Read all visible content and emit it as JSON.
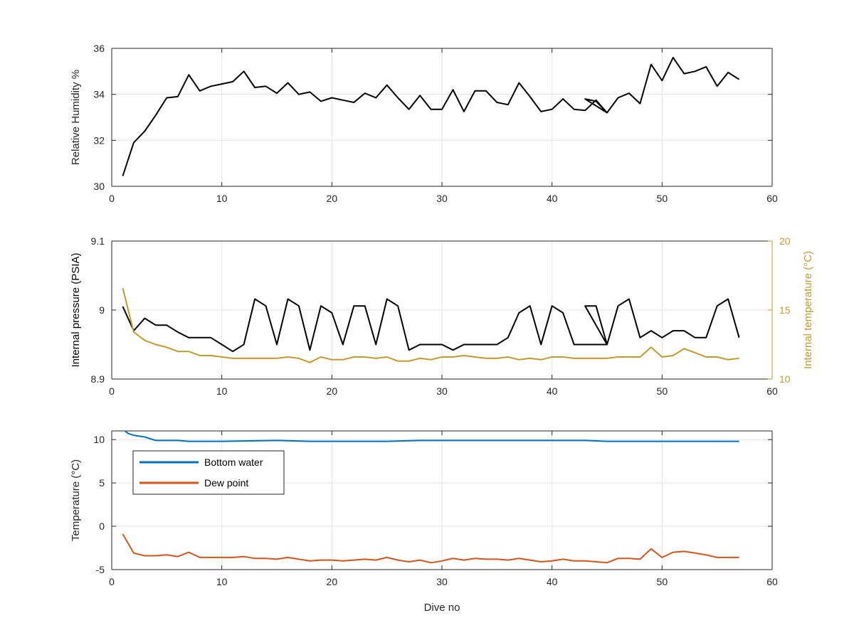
{
  "chart_data": [
    {
      "type": "line",
      "title": "",
      "xlabel": "",
      "ylabel": "Relative Humidity %",
      "xlim": [
        0,
        60
      ],
      "ylim": [
        30,
        36
      ],
      "xticks": [
        0,
        10,
        20,
        30,
        40,
        50,
        60
      ],
      "yticks": [
        30,
        32,
        34,
        36
      ],
      "grid": true,
      "legend": null,
      "series": [
        {
          "color": "#000000",
          "x": [
            1,
            2,
            3,
            4,
            5,
            6,
            7,
            8,
            9,
            10,
            11,
            12,
            13,
            14,
            15,
            16,
            17,
            18,
            19,
            20,
            21,
            22,
            23,
            24,
            25,
            26,
            27,
            28,
            29,
            30,
            31,
            32,
            33,
            34,
            35,
            36,
            37,
            38,
            39,
            40,
            41,
            42,
            43,
            44,
            45,
            43,
            44,
            45,
            46,
            47,
            48,
            49,
            50,
            51,
            52,
            53,
            54,
            55,
            56,
            57
          ],
          "y": [
            30.45,
            31.9,
            32.4,
            33.1,
            33.85,
            33.9,
            34.85,
            34.15,
            34.35,
            34.45,
            34.55,
            35.0,
            34.3,
            34.35,
            34.05,
            34.5,
            34.0,
            34.1,
            33.7,
            33.85,
            33.75,
            33.65,
            34.05,
            33.85,
            34.4,
            33.85,
            33.35,
            33.95,
            33.35,
            33.35,
            34.2,
            33.25,
            34.15,
            34.15,
            33.65,
            33.55,
            34.5,
            33.9,
            33.25,
            33.35,
            33.8,
            33.35,
            33.3,
            33.75,
            33.2,
            33.8,
            33.7,
            33.2,
            33.85,
            34.05,
            33.6,
            35.3,
            34.6,
            35.6,
            34.9,
            35.0,
            35.2,
            34.35,
            34.95,
            34.65
          ]
        }
      ]
    },
    {
      "type": "line",
      "title": "",
      "xlabel": "",
      "ylabel": "Internal pressure (PSIA)",
      "y2label": "Internal temperature (°C)",
      "xlim": [
        0,
        60
      ],
      "ylim": [
        8.9,
        9.1
      ],
      "y2lim": [
        10,
        20
      ],
      "xticks": [
        0,
        10,
        20,
        30,
        40,
        50,
        60
      ],
      "yticks": [
        8.9,
        9,
        9.1
      ],
      "ytick_labels": [
        "8.9",
        "9",
        "9.1"
      ],
      "y2ticks": [
        10,
        15,
        20
      ],
      "grid": true,
      "legend": null,
      "series": [
        {
          "axis": "left",
          "color": "#000000",
          "x": [
            1,
            2,
            3,
            4,
            5,
            6,
            7,
            8,
            9,
            10,
            11,
            12,
            13,
            14,
            15,
            16,
            17,
            18,
            19,
            20,
            21,
            22,
            23,
            24,
            25,
            26,
            27,
            28,
            29,
            30,
            31,
            32,
            33,
            34,
            35,
            36,
            37,
            38,
            39,
            40,
            41,
            42,
            43,
            44,
            45,
            43,
            44,
            45,
            46,
            47,
            48,
            49,
            50,
            51,
            52,
            53,
            54,
            55,
            56,
            57
          ],
          "y": [
            9.005,
            8.97,
            8.988,
            8.978,
            8.978,
            8.968,
            8.96,
            8.96,
            8.96,
            8.95,
            8.94,
            8.95,
            9.016,
            9.006,
            8.95,
            9.016,
            9.006,
            8.942,
            9.006,
            8.996,
            8.95,
            9.006,
            9.006,
            8.95,
            9.016,
            9.006,
            8.942,
            8.95,
            8.95,
            8.95,
            8.942,
            8.95,
            8.95,
            8.95,
            8.95,
            8.96,
            8.996,
            9.006,
            8.95,
            9.006,
            8.996,
            8.95,
            8.95,
            8.95,
            8.95,
            9.006,
            9.006,
            8.95,
            9.006,
            9.016,
            8.96,
            8.97,
            8.96,
            8.97,
            8.97,
            8.96,
            8.96,
            9.006,
            9.016,
            8.96
          ]
        },
        {
          "axis": "right",
          "color": "#c49a2a",
          "x": [
            1,
            2,
            3,
            4,
            5,
            6,
            7,
            8,
            9,
            10,
            11,
            12,
            13,
            14,
            15,
            16,
            17,
            18,
            19,
            20,
            21,
            22,
            23,
            24,
            25,
            26,
            27,
            28,
            29,
            30,
            31,
            32,
            33,
            34,
            35,
            36,
            37,
            38,
            39,
            40,
            41,
            42,
            43,
            44,
            45,
            46,
            47,
            48,
            49,
            50,
            51,
            52,
            53,
            54,
            55,
            56,
            57
          ],
          "y": [
            16.6,
            13.4,
            12.8,
            12.5,
            12.3,
            12.0,
            12.0,
            11.7,
            11.7,
            11.6,
            11.5,
            11.5,
            11.5,
            11.5,
            11.5,
            11.6,
            11.5,
            11.2,
            11.6,
            11.4,
            11.4,
            11.6,
            11.6,
            11.5,
            11.6,
            11.3,
            11.3,
            11.5,
            11.4,
            11.6,
            11.6,
            11.7,
            11.6,
            11.5,
            11.5,
            11.6,
            11.4,
            11.5,
            11.4,
            11.6,
            11.6,
            11.5,
            11.5,
            11.5,
            11.5,
            11.6,
            11.6,
            11.6,
            12.3,
            11.6,
            11.7,
            12.2,
            11.9,
            11.6,
            11.6,
            11.4,
            11.5
          ]
        }
      ]
    },
    {
      "type": "line",
      "title": "",
      "xlabel": "Dive no",
      "ylabel": "Temperature (°C)",
      "xlim": [
        0,
        60
      ],
      "ylim": [
        -5,
        11
      ],
      "xticks": [
        0,
        10,
        20,
        30,
        40,
        50,
        60
      ],
      "yticks": [
        -5,
        0,
        5,
        10
      ],
      "grid": true,
      "legend": "top-left",
      "series": [
        {
          "name": "Bottom water",
          "color": "#0072bd",
          "x": [
            1,
            1.5,
            2,
            3,
            4,
            5,
            6,
            7,
            8,
            10,
            15,
            18,
            20,
            25,
            28,
            30,
            35,
            40,
            43,
            45,
            50,
            55,
            57
          ],
          "y": [
            11.2,
            10.7,
            10.5,
            10.3,
            9.9,
            9.9,
            9.9,
            9.8,
            9.8,
            9.8,
            9.9,
            9.8,
            9.8,
            9.8,
            9.9,
            9.9,
            9.9,
            9.9,
            9.9,
            9.8,
            9.8,
            9.8,
            9.8
          ]
        },
        {
          "name": "Dew point",
          "color": "#d95319",
          "x": [
            1,
            2,
            3,
            4,
            5,
            6,
            7,
            8,
            9,
            10,
            11,
            12,
            13,
            14,
            15,
            16,
            17,
            18,
            19,
            20,
            21,
            22,
            23,
            24,
            25,
            26,
            27,
            28,
            29,
            30,
            31,
            32,
            33,
            34,
            35,
            36,
            37,
            38,
            39,
            40,
            41,
            42,
            43,
            44,
            45,
            46,
            47,
            48,
            49,
            50,
            51,
            52,
            53,
            54,
            55,
            56,
            57
          ],
          "y": [
            -0.9,
            -3.1,
            -3.4,
            -3.4,
            -3.3,
            -3.5,
            -3.0,
            -3.6,
            -3.6,
            -3.6,
            -3.6,
            -3.5,
            -3.7,
            -3.7,
            -3.8,
            -3.6,
            -3.8,
            -4.0,
            -3.9,
            -3.9,
            -4.0,
            -3.9,
            -3.8,
            -3.9,
            -3.6,
            -3.9,
            -4.1,
            -3.9,
            -4.2,
            -4.0,
            -3.7,
            -3.9,
            -3.7,
            -3.8,
            -3.8,
            -3.9,
            -3.7,
            -3.9,
            -4.1,
            -4.0,
            -3.8,
            -4.0,
            -4.0,
            -4.1,
            -4.2,
            -3.7,
            -3.7,
            -3.8,
            -2.6,
            -3.6,
            -3.0,
            -2.9,
            -3.1,
            -3.3,
            -3.6,
            -3.6,
            -3.6
          ]
        }
      ]
    }
  ]
}
